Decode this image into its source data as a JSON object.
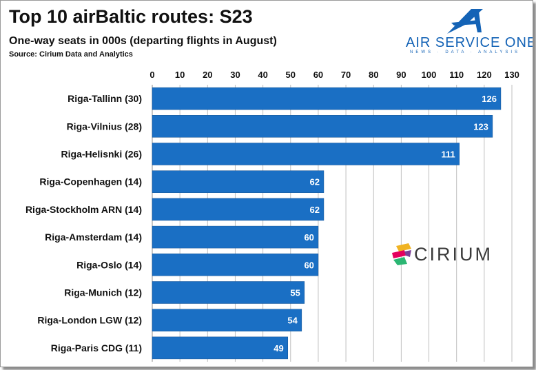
{
  "header": {
    "title": "Top 10 airBaltic routes: S23",
    "subtitle": "One-way seats in 000s (departing flights in August)",
    "source": "Source: Cirium Data and Analytics"
  },
  "logo": {
    "name": "AIR SERVICE ONE",
    "tagline": "NEWS · DATA · ANALYSIS",
    "color": "#1463b6"
  },
  "watermark": {
    "name": "CIRIUM"
  },
  "chart_data": {
    "type": "bar",
    "orientation": "horizontal",
    "title": "Top 10 airBaltic routes: S23",
    "subtitle": "One-way seats in 000s (departing flights in August)",
    "categories": [
      "Riga-Tallinn (30)",
      "Riga-Vilnius (28)",
      "Riga-Helisnki (26)",
      "Riga-Copenhagen (14)",
      "Riga-Stockholm ARN (14)",
      "Riga-Amsterdam (14)",
      "Riga-Oslo (14)",
      "Riga-Munich (12)",
      "Riga-London LGW (12)",
      "Riga-Paris CDG (11)"
    ],
    "values": [
      126,
      123,
      111,
      62,
      62,
      60,
      60,
      55,
      54,
      49
    ],
    "xlim": [
      0,
      130
    ],
    "xticks": [
      0,
      10,
      20,
      30,
      40,
      50,
      60,
      70,
      80,
      90,
      100,
      110,
      120,
      130
    ],
    "axis_position": "top",
    "grid": true,
    "legend": "none",
    "data_labels": true,
    "bar_color": "#1a6fc4",
    "grid_color": "#bfbfbf"
  }
}
